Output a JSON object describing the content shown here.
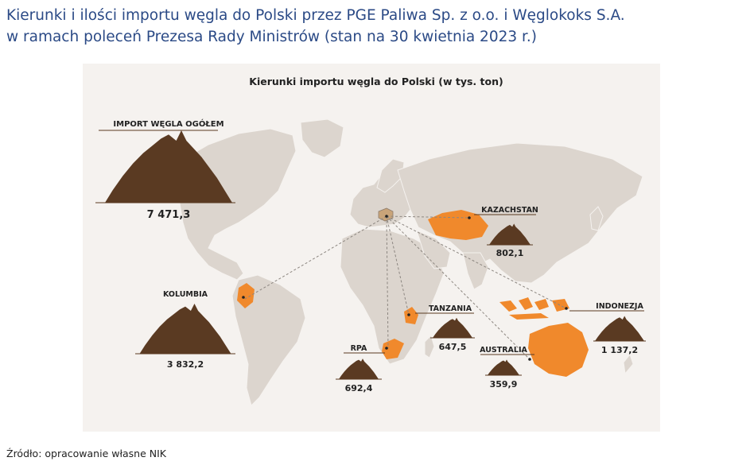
{
  "header": {
    "title_line1": "Kierunki i ilości importu węgla do Polski przez PGE Paliwa Sp. z o.o. i Węglokoks S.A.",
    "title_line2": "w ramach poleceń Prezesa Rady Ministrów (stan na 30 kwietnia 2023 r.)"
  },
  "map": {
    "subtitle": "Kierunki importu węgla do Polski (w tys. ton)",
    "total": {
      "label": "IMPORT WĘGLA OGÓŁEM",
      "value": "7 471,3",
      "value_num": 7471.3
    },
    "sources": [
      {
        "id": "kolumbia",
        "label": "KOLUMBIA",
        "value": "3 832,2",
        "value_num": 3832.2
      },
      {
        "id": "kazachstan",
        "label": "KAZACHSTAN",
        "value": "802,1",
        "value_num": 802.1
      },
      {
        "id": "indonezja",
        "label": "INDONEZJA",
        "value": "1 137,2",
        "value_num": 1137.2
      },
      {
        "id": "tanzania",
        "label": "TANZANIA",
        "value": "647,5",
        "value_num": 647.5
      },
      {
        "id": "rpa",
        "label": "RPA",
        "value": "692,4",
        "value_num": 692.4
      },
      {
        "id": "australia",
        "label": "AUSTRALIA",
        "value": "359,9",
        "value_num": 359.9
      }
    ],
    "colors": {
      "land": "#dcd5ce",
      "highlight": "#f0892c",
      "coal": "#5a3a22",
      "routes": "#8c8680",
      "background": "#f5f2ef",
      "title": "#2b4a86"
    },
    "icons": [
      "coal-pile-icon",
      "route-line"
    ]
  },
  "footer": {
    "source": "Źródło: opracowanie własne NIK"
  }
}
